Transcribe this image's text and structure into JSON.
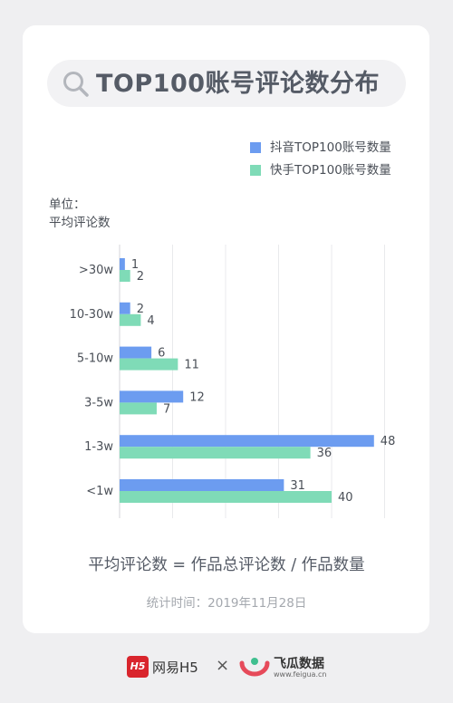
{
  "title": "TOP100账号评论数分布",
  "legend": [
    {
      "label": "抖音TOP100账号数量",
      "color": "#6c9cf0"
    },
    {
      "label": "快手TOP100账号数量",
      "color": "#7fdbb7"
    }
  ],
  "unit_label": [
    "单位：",
    "平均评论数"
  ],
  "chart_data": {
    "type": "bar",
    "orientation": "horizontal",
    "categories": [
      ">30w",
      "10-30w",
      "5-10w",
      "3-5w",
      "1-3w",
      "<1w"
    ],
    "series": [
      {
        "name": "抖音TOP100账号数量",
        "values": [
          1,
          2,
          6,
          12,
          48,
          31
        ],
        "color": "#6c9cf0"
      },
      {
        "name": "快手TOP100账号数量",
        "values": [
          2,
          4,
          11,
          7,
          36,
          40
        ],
        "color": "#7fdbb7"
      }
    ],
    "xlim": [
      0,
      50
    ],
    "grid": true
  },
  "formula": "平均评论数 = 作品总评论数 / 作品数量",
  "stat_time": "统计时间：2019年11月28日",
  "footer": {
    "brand1": "网易H5",
    "brand1_icon": "H5",
    "separator": "×",
    "brand2": "飞瓜数据",
    "brand2_url": "www.feigua.cn"
  },
  "colors": {
    "background": "#efeff1",
    "card": "#ffffff",
    "title": "#555b66",
    "douyin": "#6c9cf0",
    "kuaishou": "#7fdbb7",
    "netease_red": "#d9252d"
  }
}
